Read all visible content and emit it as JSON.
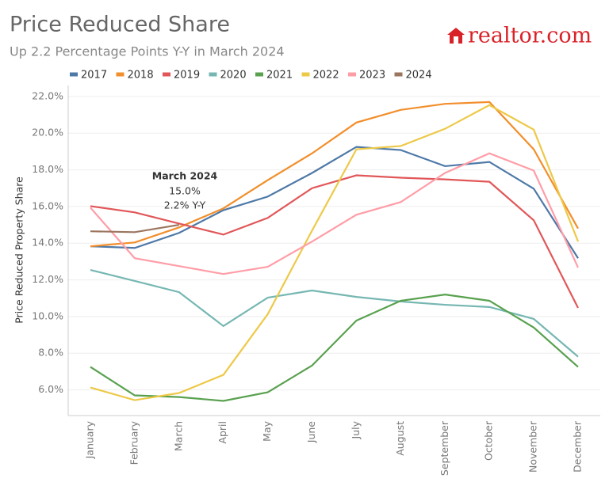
{
  "chart_data": {
    "type": "line",
    "title": "Price Reduced Share",
    "subtitle": "Up 2.2 Percentage Points Y-Y in March 2024",
    "logo": "realtor.com",
    "y_label": "Price Reduced Property Share",
    "annotation": [
      "March 2024",
      "15.0%",
      "2.2% Y-Y"
    ],
    "categories": [
      "January",
      "February",
      "March",
      "April",
      "May",
      "June",
      "July",
      "August",
      "September",
      "October",
      "November",
      "December"
    ],
    "ylim": [
      4.6,
      22.6
    ],
    "yticks": [
      {
        "value": 6,
        "label": "6.0%"
      },
      {
        "value": 8,
        "label": "8.0%"
      },
      {
        "value": 10,
        "label": "10.0%"
      },
      {
        "value": 12,
        "label": "12.0%"
      },
      {
        "value": 14,
        "label": "14.0%"
      },
      {
        "value": 16,
        "label": "16.0%"
      },
      {
        "value": 18,
        "label": "18.0%"
      },
      {
        "value": 20,
        "label": "20.0%"
      },
      {
        "value": 22,
        "label": "22.0%"
      }
    ],
    "grid": true,
    "series": [
      {
        "name": "2017",
        "color": "#4e79a7",
        "values": [
          13.83,
          13.74,
          14.56,
          15.8,
          16.54,
          17.83,
          19.25,
          19.08,
          18.2,
          18.43,
          16.97,
          13.18
        ]
      },
      {
        "name": "2018",
        "color": "#f28e2b",
        "values": [
          13.83,
          14.04,
          14.86,
          15.9,
          17.44,
          18.9,
          20.58,
          21.27,
          21.6,
          21.7,
          19.12,
          14.8
        ]
      },
      {
        "name": "2019",
        "color": "#e15759",
        "values": [
          16.02,
          15.68,
          15.07,
          14.47,
          15.38,
          17.0,
          17.7,
          17.57,
          17.48,
          17.35,
          15.25,
          10.47
        ]
      },
      {
        "name": "2020",
        "color": "#76b7b2",
        "values": [
          12.54,
          11.94,
          11.33,
          9.48,
          11.03,
          11.42,
          11.07,
          10.82,
          10.64,
          10.52,
          9.87,
          7.81
        ]
      },
      {
        "name": "2021",
        "color": "#59a14f",
        "values": [
          7.25,
          5.7,
          5.61,
          5.4,
          5.87,
          7.33,
          9.78,
          10.86,
          11.2,
          10.86,
          9.4,
          7.25
        ]
      },
      {
        "name": "2022",
        "color": "#edc948",
        "values": [
          6.13,
          5.44,
          5.83,
          6.82,
          10.13,
          14.69,
          19.12,
          19.3,
          20.24,
          21.53,
          20.19,
          14.09
        ]
      },
      {
        "name": "2023",
        "color": "#ff9da7",
        "values": [
          15.94,
          13.18,
          12.75,
          12.32,
          12.71,
          14.09,
          15.55,
          16.24,
          17.83,
          18.9,
          17.96,
          12.67
        ]
      },
      {
        "name": "2024",
        "color": "#9c755f",
        "values": [
          14.65,
          14.6,
          15.0,
          null,
          null,
          null,
          null,
          null,
          null,
          null,
          null,
          null
        ]
      }
    ]
  }
}
